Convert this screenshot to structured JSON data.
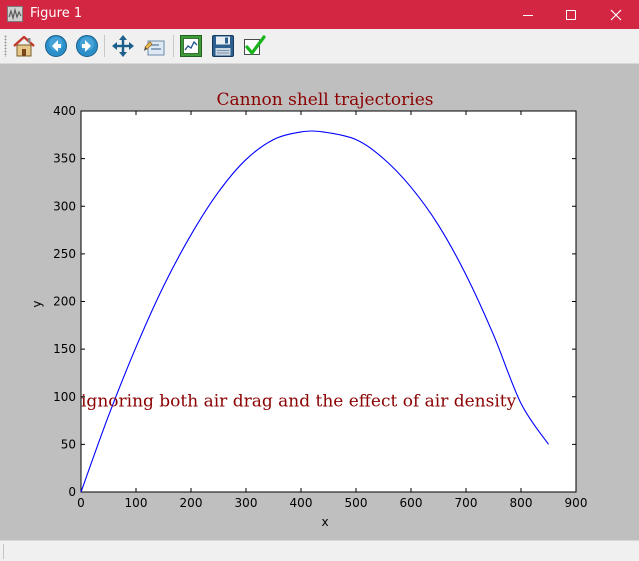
{
  "window": {
    "title": "Figure 1",
    "controls": [
      "minimize",
      "maximize",
      "close"
    ]
  },
  "toolbar": {
    "buttons": [
      {
        "name": "home",
        "icon": "home-icon"
      },
      {
        "name": "back",
        "icon": "arrow-left-icon"
      },
      {
        "name": "forward",
        "icon": "arrow-right-icon"
      },
      {
        "name": "pan",
        "icon": "move-arrows-icon"
      },
      {
        "name": "zoom",
        "icon": "zoom-rect-icon"
      },
      {
        "name": "subplots",
        "icon": "configure-subplots-icon"
      },
      {
        "name": "save",
        "icon": "floppy-disk-icon"
      },
      {
        "name": "edit",
        "icon": "checkmark-icon"
      }
    ]
  },
  "colors": {
    "titlebar": "#d32642",
    "figure_bg": "#bfbfbf",
    "line": "#0000ff",
    "title_text": "#8b0000"
  },
  "chart_data": {
    "type": "line",
    "title": "Cannon shell trajectories",
    "xlabel": "x",
    "ylabel": "y",
    "xlim": [
      0,
      900
    ],
    "ylim": [
      0,
      400
    ],
    "xticks": [
      0,
      100,
      200,
      300,
      400,
      500,
      600,
      700,
      800,
      900
    ],
    "yticks": [
      0,
      50,
      100,
      150,
      200,
      250,
      300,
      350,
      400
    ],
    "grid": false,
    "annotation": {
      "text": "ignoring both air drag and the effect of air density",
      "x": 0,
      "y": 90
    },
    "series": [
      {
        "color": "#0000ff",
        "x": [
          0,
          50,
          100,
          150,
          200,
          250,
          300,
          350,
          400,
          440,
          500,
          550,
          600,
          650,
          700,
          750,
          800,
          850
        ],
        "y": [
          0,
          80,
          152,
          216,
          270,
          315,
          349,
          370,
          378,
          378,
          370,
          350,
          320,
          280,
          228,
          165,
          93,
          50
        ]
      }
    ]
  }
}
